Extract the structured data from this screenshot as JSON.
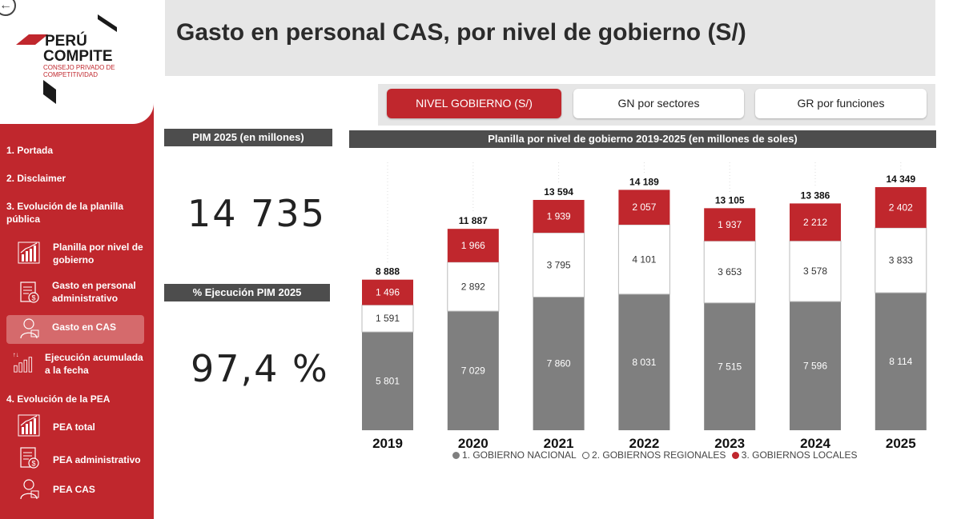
{
  "app": {
    "back_icon": "arrow-left-circle-icon",
    "logo": {
      "line1": "PERÚ",
      "line2": "COMPITE",
      "line3": "CONSEJO PRIVADO DE",
      "line4": "COMPETITIVIDAD"
    }
  },
  "sidebar": {
    "items": [
      {
        "label": "1. Portada"
      },
      {
        "label": "2. Disclaimer"
      },
      {
        "label": "3. Evolución de la planilla pública"
      }
    ],
    "section3_subitems": [
      {
        "label": "Planilla por nivel de gobierno",
        "icon": "bar-chart-icon"
      },
      {
        "label": "Gasto en personal administrativo",
        "icon": "document-money-icon"
      },
      {
        "label": "Gasto en CAS",
        "icon": "worker-icon",
        "active": true
      },
      {
        "label": "Ejecución acumulada a la fecha",
        "icon": "ascending-bars-icon"
      }
    ],
    "section4": {
      "label": "4. Evolución de la PEA"
    },
    "section4_subitems": [
      {
        "label": "PEA total",
        "icon": "bar-chart-icon"
      },
      {
        "label": "PEA administrativo",
        "icon": "document-money-icon"
      },
      {
        "label": "PEA CAS",
        "icon": "worker-icon"
      }
    ]
  },
  "header": {
    "title": "Gasto en personal CAS, por nivel de gobierno (S/)"
  },
  "tabs": [
    {
      "label": "NIVEL GOBIERNO (S/)",
      "active": true
    },
    {
      "label": "GN por sectores",
      "active": false
    },
    {
      "label": "GR por funciones",
      "active": false
    }
  ],
  "kpis": {
    "pim_label": "PIM 2025 (en millones)",
    "pim_value": "14 735",
    "exec_label": "% Ejecución PIM 2025",
    "exec_value": "97,4 %"
  },
  "colors": {
    "accent": "#c0272d",
    "nacional": "#7f7f7f",
    "regionales": "#ffffff",
    "locales": "#c0272d",
    "dark_header": "#4d4d4d"
  },
  "chart_data": {
    "type": "bar",
    "stacked": true,
    "title": "Planilla por nivel de gobierno 2019-2025 (en millones de soles)",
    "categories": [
      "2019",
      "2020",
      "2021",
      "2022",
      "2023",
      "2024",
      "2025"
    ],
    "series": [
      {
        "name": "1. GOBIERNO NACIONAL",
        "values": [
          5801,
          7029,
          7860,
          8031,
          7515,
          7596,
          8114
        ],
        "labels": [
          "5 801",
          "7 029",
          "7 860",
          "8 031",
          "7 515",
          "7 596",
          "8 114"
        ]
      },
      {
        "name": "2. GOBIERNOS REGIONALES",
        "values": [
          1591,
          2892,
          3795,
          4101,
          3653,
          3578,
          3833
        ],
        "labels": [
          "1 591",
          "2 892",
          "3 795",
          "4 101",
          "3 653",
          "3 578",
          "3 833"
        ]
      },
      {
        "name": "3. GOBIERNOS LOCALES",
        "values": [
          1496,
          1966,
          1939,
          2057,
          1937,
          2212,
          2402
        ],
        "labels": [
          "1 496",
          "1 966",
          "1 939",
          "2 057",
          "1 937",
          "2 212",
          "2 402"
        ]
      }
    ],
    "totals": [
      8888,
      11887,
      13594,
      14189,
      13105,
      13386,
      14349
    ],
    "total_labels": [
      "8 888",
      "11 887",
      "13 594",
      "14 189",
      "13 105",
      "13 386",
      "14 349"
    ],
    "legend_position": "bottom",
    "grid": false
  }
}
